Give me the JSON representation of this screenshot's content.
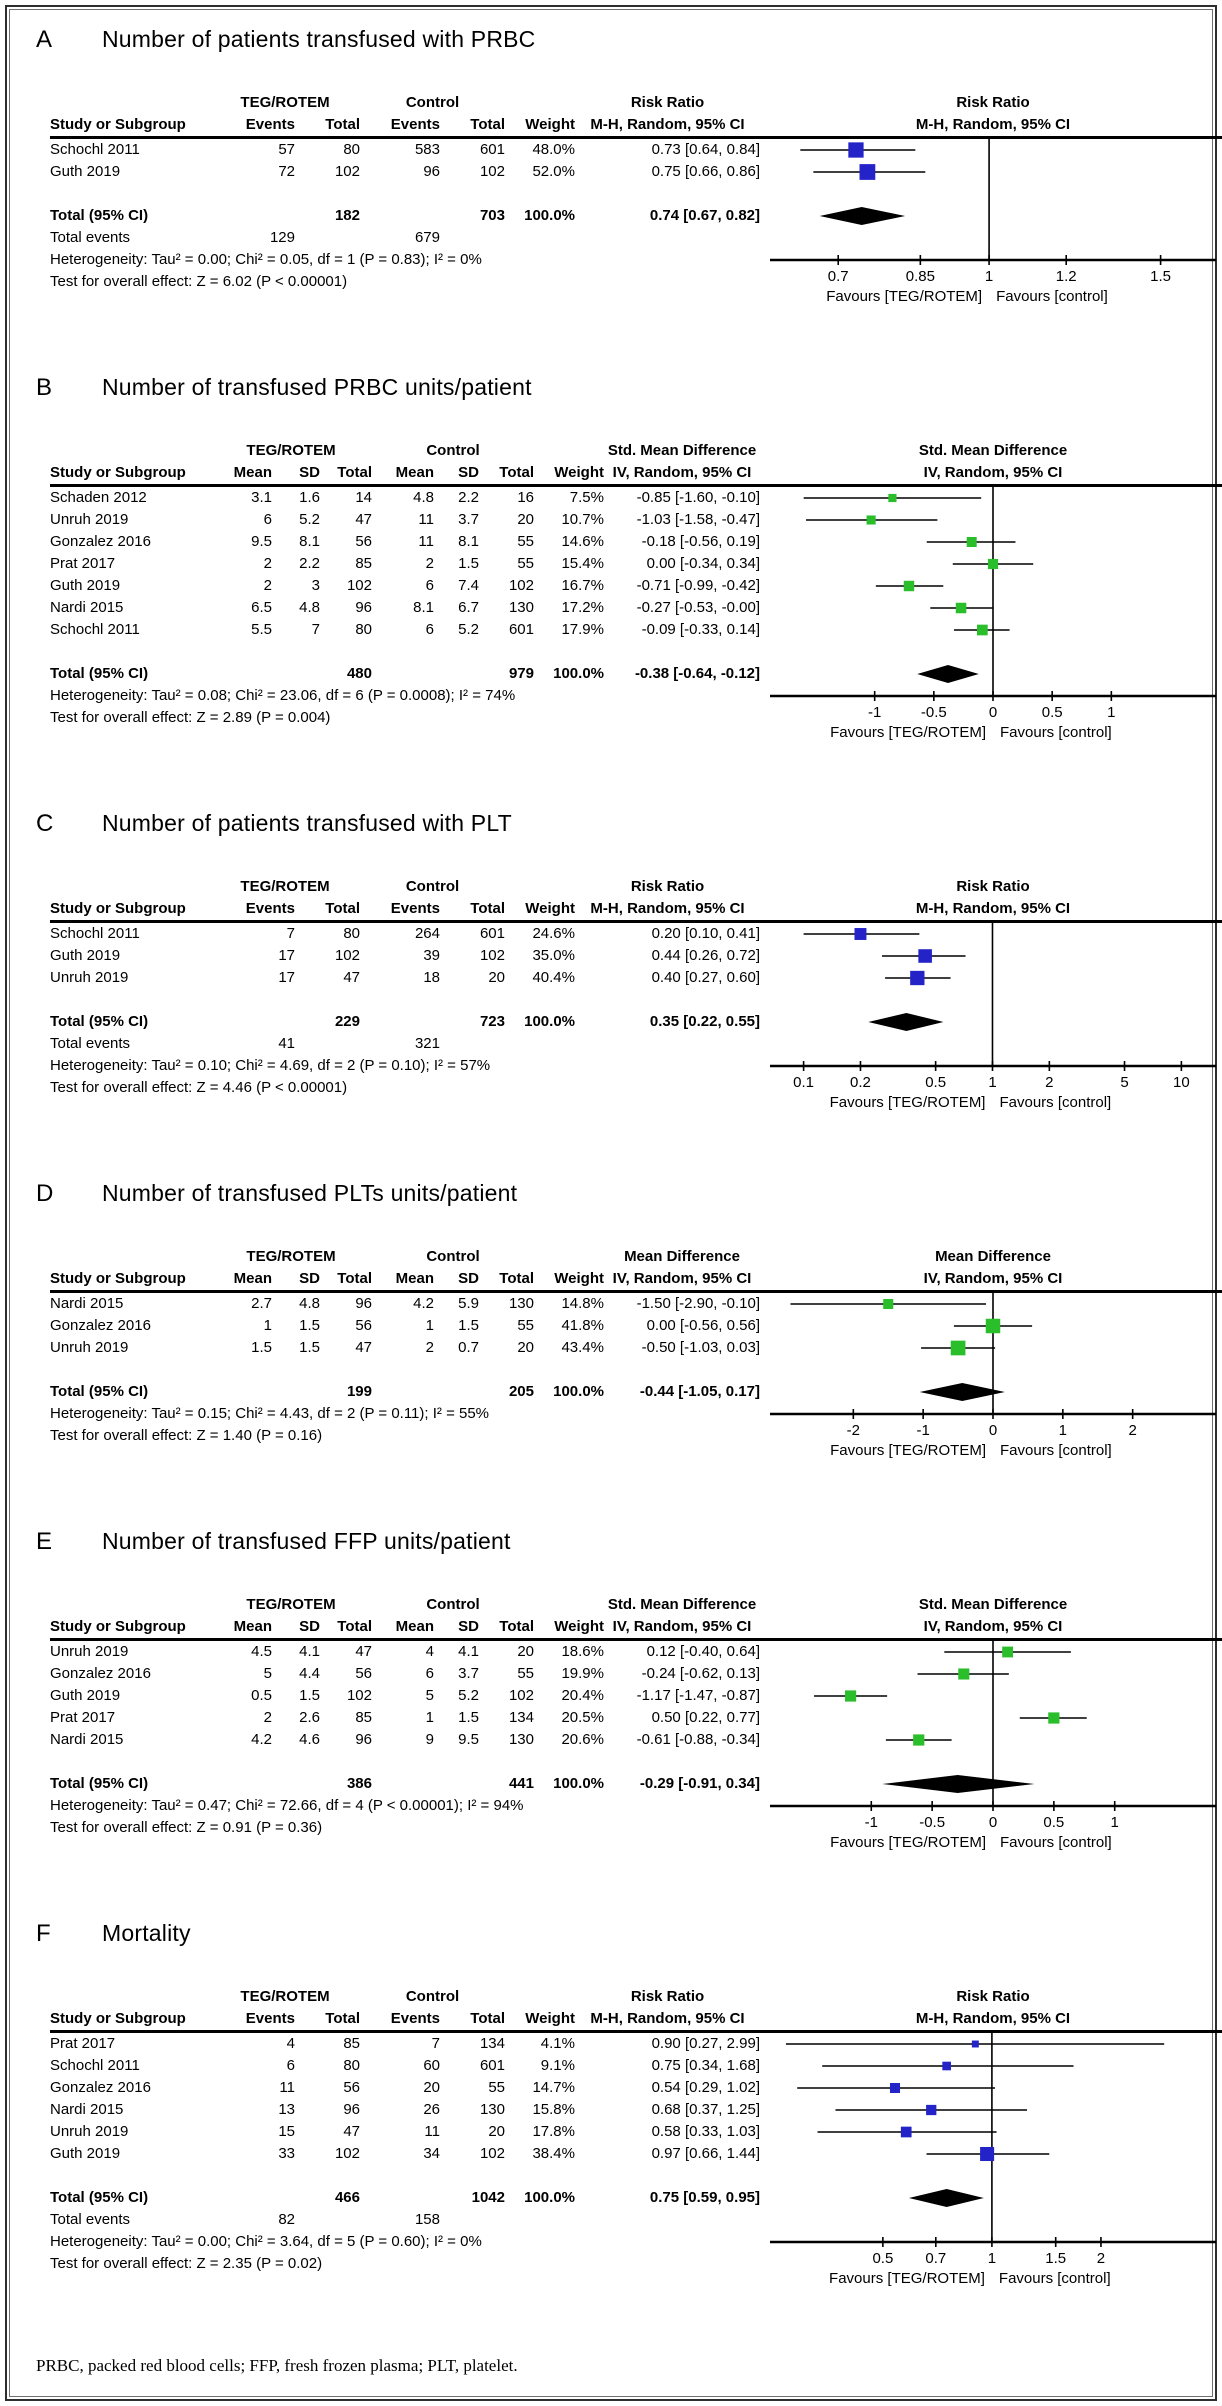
{
  "figure": {
    "footnote": "PRBC, packed red blood cells; FFP, fresh frozen plasma; PLT, platelet.",
    "favours_left": "Favours [TEG/ROTEM]",
    "favours_right": "Favours [control]",
    "marker_colors": {
      "risk_ratio": "#2323C8",
      "mean_difference": "#2BBE2B"
    },
    "diamond_color": "#000000"
  },
  "chart_data": [
    {
      "label": "A",
      "title": "Number of patients transfused with PRBC",
      "type": "forest",
      "layout": "events",
      "group1": "TEG/ROTEM",
      "group2": "Control",
      "effect_line1": "Risk Ratio",
      "effect_line2": "M-H, Random, 95% CI",
      "col_headers": [
        "Study or Subgroup",
        "Events",
        "Total",
        "Events",
        "Total",
        "Weight"
      ],
      "marker_color": "#2323C8",
      "rows": [
        {
          "study": "Schochl 2011",
          "cols": [
            "57",
            "80",
            "583",
            "601"
          ],
          "weight": "48.0%",
          "weight_value": 48.0,
          "effect": "0.73 [0.64, 0.84]",
          "est": 0.73,
          "lo": 0.64,
          "hi": 0.84
        },
        {
          "study": "Guth 2019",
          "cols": [
            "72",
            "102",
            "96",
            "102"
          ],
          "weight": "52.0%",
          "weight_value": 52.0,
          "effect": "0.75 [0.66, 0.86]",
          "est": 0.75,
          "lo": 0.66,
          "hi": 0.86
        }
      ],
      "total": {
        "label": "Total (95% CI)",
        "g1_total": "182",
        "g2_total": "703",
        "weight": "100.0%",
        "effect": "0.74 [0.67, 0.82]",
        "est": 0.74,
        "lo": 0.67,
        "hi": 0.82
      },
      "total_events": {
        "label": "Total events",
        "g1": "129",
        "g2": "679"
      },
      "heterogeneity": "Heterogeneity: Tau² = 0.00; Chi² = 0.05, df = 1 (P = 0.83); I² = 0%",
      "overall_effect": "Test for overall effect: Z = 6.02 (P < 0.00001)",
      "axis": {
        "scale": "log",
        "null_value": 1,
        "ticks": [
          0.7,
          0.85,
          1,
          1.2,
          1.5
        ],
        "tick_labels": [
          "0.7",
          "0.85",
          "1",
          "1.2",
          "1.5"
        ],
        "extent": [
          0.61,
          1.67
        ]
      }
    },
    {
      "label": "B",
      "title": "Number of transfused PRBC units/patient",
      "type": "forest",
      "layout": "mean_sd",
      "group1": "TEG/ROTEM",
      "group2": "Control",
      "effect_line1": "Std. Mean Difference",
      "effect_line2": "IV, Random, 95% CI",
      "col_headers": [
        "Study or Subgroup",
        "Mean",
        "SD",
        "Total",
        "Mean",
        "SD",
        "Total",
        "Weight"
      ],
      "marker_color": "#2BBE2B",
      "rows": [
        {
          "study": "Schaden 2012",
          "cols": [
            "3.1",
            "1.6",
            "14",
            "4.8",
            "2.2",
            "16"
          ],
          "weight": "7.5%",
          "weight_value": 7.5,
          "effect": "-0.85 [-1.60, -0.10]",
          "est": -0.85,
          "lo": -1.6,
          "hi": -0.1
        },
        {
          "study": "Unruh 2019",
          "cols": [
            "6",
            "5.2",
            "47",
            "11",
            "3.7",
            "20"
          ],
          "weight": "10.7%",
          "weight_value": 10.7,
          "effect": "-1.03 [-1.58, -0.47]",
          "est": -1.03,
          "lo": -1.58,
          "hi": -0.47
        },
        {
          "study": "Gonzalez 2016",
          "cols": [
            "9.5",
            "8.1",
            "56",
            "11",
            "8.1",
            "55"
          ],
          "weight": "14.6%",
          "weight_value": 14.6,
          "effect": "-0.18 [-0.56, 0.19]",
          "est": -0.18,
          "lo": -0.56,
          "hi": 0.19
        },
        {
          "study": "Prat 2017",
          "cols": [
            "2",
            "2.2",
            "85",
            "2",
            "1.5",
            "55"
          ],
          "weight": "15.4%",
          "weight_value": 15.4,
          "effect": "0.00 [-0.34, 0.34]",
          "est": 0.0,
          "lo": -0.34,
          "hi": 0.34
        },
        {
          "study": "Guth 2019",
          "cols": [
            "2",
            "3",
            "102",
            "6",
            "7.4",
            "102"
          ],
          "weight": "16.7%",
          "weight_value": 16.7,
          "effect": "-0.71 [-0.99, -0.42]",
          "est": -0.71,
          "lo": -0.99,
          "hi": -0.42
        },
        {
          "study": "Nardi 2015",
          "cols": [
            "6.5",
            "4.8",
            "96",
            "8.1",
            "6.7",
            "130"
          ],
          "weight": "17.2%",
          "weight_value": 17.2,
          "effect": "-0.27 [-0.53, -0.00]",
          "est": -0.27,
          "lo": -0.53,
          "hi": -0.0
        },
        {
          "study": "Schochl 2011",
          "cols": [
            "5.5",
            "7",
            "80",
            "6",
            "5.2",
            "601"
          ],
          "weight": "17.9%",
          "weight_value": 17.9,
          "effect": "-0.09 [-0.33, 0.14]",
          "est": -0.09,
          "lo": -0.33,
          "hi": 0.14
        }
      ],
      "total": {
        "label": "Total (95% CI)",
        "g1_total": "480",
        "g2_total": "979",
        "weight": "100.0%",
        "effect": "-0.38 [-0.64, -0.12]",
        "est": -0.38,
        "lo": -0.64,
        "hi": -0.12
      },
      "heterogeneity": "Heterogeneity: Tau² = 0.08; Chi² = 23.06, df = 6 (P = 0.0008); I² = 74%",
      "overall_effect": "Test for overall effect: Z = 2.89 (P = 0.004)",
      "axis": {
        "scale": "linear",
        "null_value": 0,
        "ticks": [
          -1,
          -0.5,
          0,
          0.5,
          1
        ],
        "tick_labels": [
          "-1",
          "-0.5",
          "0",
          "0.5",
          "1"
        ],
        "extent": [
          -1.8,
          1.8
        ]
      }
    },
    {
      "label": "C",
      "title": "Number of patients transfused with PLT",
      "type": "forest",
      "layout": "events",
      "group1": "TEG/ROTEM",
      "group2": "Control",
      "effect_line1": "Risk Ratio",
      "effect_line2": "M-H, Random, 95% CI",
      "col_headers": [
        "Study or Subgroup",
        "Events",
        "Total",
        "Events",
        "Total",
        "Weight"
      ],
      "marker_color": "#2323C8",
      "rows": [
        {
          "study": "Schochl 2011",
          "cols": [
            "7",
            "80",
            "264",
            "601"
          ],
          "weight": "24.6%",
          "weight_value": 24.6,
          "effect": "0.20 [0.10, 0.41]",
          "est": 0.2,
          "lo": 0.1,
          "hi": 0.41
        },
        {
          "study": "Guth 2019",
          "cols": [
            "17",
            "102",
            "39",
            "102"
          ],
          "weight": "35.0%",
          "weight_value": 35.0,
          "effect": "0.44 [0.26, 0.72]",
          "est": 0.44,
          "lo": 0.26,
          "hi": 0.72
        },
        {
          "study": "Unruh 2019",
          "cols": [
            "17",
            "47",
            "18",
            "20"
          ],
          "weight": "40.4%",
          "weight_value": 40.4,
          "effect": "0.40 [0.27, 0.60]",
          "est": 0.4,
          "lo": 0.27,
          "hi": 0.6
        }
      ],
      "total": {
        "label": "Total (95% CI)",
        "g1_total": "229",
        "g2_total": "723",
        "weight": "100.0%",
        "effect": "0.35 [0.22, 0.55]",
        "est": 0.35,
        "lo": 0.22,
        "hi": 0.55
      },
      "total_events": {
        "label": "Total events",
        "g1": "41",
        "g2": "321"
      },
      "heterogeneity": "Heterogeneity: Tau² = 0.10; Chi² = 4.69, df = 2 (P = 0.10); I² = 57%",
      "overall_effect": "Test for overall effect: Z = 4.46 (P < 0.00001)",
      "axis": {
        "scale": "log",
        "null_value": 1,
        "ticks": [
          0.1,
          0.2,
          0.5,
          1,
          2,
          5,
          10
        ],
        "tick_labels": [
          "0.1",
          "0.2",
          "0.5",
          "1",
          "2",
          "5",
          "10"
        ],
        "extent": [
          0.075,
          13.5
        ]
      }
    },
    {
      "label": "D",
      "title": "Number of transfused PLTs units/patient",
      "type": "forest",
      "layout": "mean_sd",
      "group1": "TEG/ROTEM",
      "group2": "Control",
      "effect_line1": "Mean Difference",
      "effect_line2": "IV, Random, 95% CI",
      "col_headers": [
        "Study or Subgroup",
        "Mean",
        "SD",
        "Total",
        "Mean",
        "SD",
        "Total",
        "Weight"
      ],
      "marker_color": "#2BBE2B",
      "rows": [
        {
          "study": "Nardi 2015",
          "cols": [
            "2.7",
            "4.8",
            "96",
            "4.2",
            "5.9",
            "130"
          ],
          "weight": "14.8%",
          "weight_value": 14.8,
          "effect": "-1.50 [-2.90, -0.10]",
          "est": -1.5,
          "lo": -2.9,
          "hi": -0.1
        },
        {
          "study": "Gonzalez 2016",
          "cols": [
            "1",
            "1.5",
            "56",
            "1",
            "1.5",
            "55"
          ],
          "weight": "41.8%",
          "weight_value": 41.8,
          "effect": "0.00 [-0.56, 0.56]",
          "est": 0.0,
          "lo": -0.56,
          "hi": 0.56
        },
        {
          "study": "Unruh 2019",
          "cols": [
            "1.5",
            "1.5",
            "47",
            "2",
            "0.7",
            "20"
          ],
          "weight": "43.4%",
          "weight_value": 43.4,
          "effect": "-0.50 [-1.03, 0.03]",
          "est": -0.5,
          "lo": -1.03,
          "hi": 0.03
        }
      ],
      "total": {
        "label": "Total (95% CI)",
        "g1_total": "199",
        "g2_total": "205",
        "weight": "100.0%",
        "effect": "-0.44 [-1.05, 0.17]",
        "est": -0.44,
        "lo": -1.05,
        "hi": 0.17
      },
      "heterogeneity": "Heterogeneity: Tau² = 0.15; Chi² = 4.43, df = 2 (P = 0.11); I² = 55%",
      "overall_effect": "Test for overall effect: Z = 1.40 (P = 0.16)",
      "axis": {
        "scale": "linear",
        "null_value": 0,
        "ticks": [
          -2,
          -1,
          0,
          1,
          2
        ],
        "tick_labels": [
          "-2",
          "-1",
          "0",
          "1",
          "2"
        ],
        "extent": [
          -3.05,
          3.05
        ]
      }
    },
    {
      "label": "E",
      "title": "Number of transfused FFP units/patient",
      "type": "forest",
      "layout": "mean_sd",
      "group1": "TEG/ROTEM",
      "group2": "Control",
      "effect_line1": "Std. Mean Difference",
      "effect_line2": "IV, Random, 95% CI",
      "col_headers": [
        "Study or Subgroup",
        "Mean",
        "SD",
        "Total",
        "Mean",
        "SD",
        "Total",
        "Weight"
      ],
      "marker_color": "#2BBE2B",
      "rows": [
        {
          "study": "Unruh 2019",
          "cols": [
            "4.5",
            "4.1",
            "47",
            "4",
            "4.1",
            "20"
          ],
          "weight": "18.6%",
          "weight_value": 18.6,
          "effect": "0.12 [-0.40, 0.64]",
          "est": 0.12,
          "lo": -0.4,
          "hi": 0.64
        },
        {
          "study": "Gonzalez 2016",
          "cols": [
            "5",
            "4.4",
            "56",
            "6",
            "3.7",
            "55"
          ],
          "weight": "19.9%",
          "weight_value": 19.9,
          "effect": "-0.24 [-0.62, 0.13]",
          "est": -0.24,
          "lo": -0.62,
          "hi": 0.13
        },
        {
          "study": "Guth 2019",
          "cols": [
            "0.5",
            "1.5",
            "102",
            "5",
            "5.2",
            "102"
          ],
          "weight": "20.4%",
          "weight_value": 20.4,
          "effect": "-1.17 [-1.47, -0.87]",
          "est": -1.17,
          "lo": -1.47,
          "hi": -0.87
        },
        {
          "study": "Prat 2017",
          "cols": [
            "2",
            "2.6",
            "85",
            "1",
            "1.5",
            "134"
          ],
          "weight": "20.5%",
          "weight_value": 20.5,
          "effect": "0.50 [0.22, 0.77]",
          "est": 0.5,
          "lo": 0.22,
          "hi": 0.77
        },
        {
          "study": "Nardi 2015",
          "cols": [
            "4.2",
            "4.6",
            "96",
            "9",
            "9.5",
            "130"
          ],
          "weight": "20.6%",
          "weight_value": 20.6,
          "effect": "-0.61 [-0.88, -0.34]",
          "est": -0.61,
          "lo": -0.88,
          "hi": -0.34
        }
      ],
      "total": {
        "label": "Total (95% CI)",
        "g1_total": "386",
        "g2_total": "441",
        "weight": "100.0%",
        "effect": "-0.29 [-0.91, 0.34]",
        "est": -0.29,
        "lo": -0.91,
        "hi": 0.34
      },
      "heterogeneity": "Heterogeneity: Tau² = 0.47; Chi² = 72.66, df = 4 (P < 0.00001); I² = 94%",
      "overall_effect": "Test for overall effect: Z = 0.91 (P = 0.36)",
      "axis": {
        "scale": "linear",
        "null_value": 0,
        "ticks": [
          -1,
          -0.5,
          0,
          0.5,
          1
        ],
        "tick_labels": [
          "-1",
          "-0.5",
          "0",
          "0.5",
          "1"
        ],
        "extent": [
          -1.75,
          1.75
        ]
      }
    },
    {
      "label": "F",
      "title": "Mortality",
      "type": "forest",
      "layout": "events",
      "group1": "TEG/ROTEM",
      "group2": "Control",
      "effect_line1": "Risk Ratio",
      "effect_line2": "M-H, Random, 95% CI",
      "col_headers": [
        "Study or Subgroup",
        "Events",
        "Total",
        "Events",
        "Total",
        "Weight"
      ],
      "marker_color": "#2323C8",
      "rows": [
        {
          "study": "Prat 2017",
          "cols": [
            "4",
            "85",
            "7",
            "134"
          ],
          "weight": "4.1%",
          "weight_value": 4.1,
          "effect": "0.90 [0.27, 2.99]",
          "est": 0.9,
          "lo": 0.27,
          "hi": 2.99
        },
        {
          "study": "Schochl 2011",
          "cols": [
            "6",
            "80",
            "60",
            "601"
          ],
          "weight": "9.1%",
          "weight_value": 9.1,
          "effect": "0.75 [0.34, 1.68]",
          "est": 0.75,
          "lo": 0.34,
          "hi": 1.68
        },
        {
          "study": "Gonzalez 2016",
          "cols": [
            "11",
            "56",
            "20",
            "55"
          ],
          "weight": "14.7%",
          "weight_value": 14.7,
          "effect": "0.54 [0.29, 1.02]",
          "est": 0.54,
          "lo": 0.29,
          "hi": 1.02
        },
        {
          "study": "Nardi 2015",
          "cols": [
            "13",
            "96",
            "26",
            "130"
          ],
          "weight": "15.8%",
          "weight_value": 15.8,
          "effect": "0.68 [0.37, 1.25]",
          "est": 0.68,
          "lo": 0.37,
          "hi": 1.25
        },
        {
          "study": "Unruh 2019",
          "cols": [
            "15",
            "47",
            "11",
            "20"
          ],
          "weight": "17.8%",
          "weight_value": 17.8,
          "effect": "0.58 [0.33, 1.03]",
          "est": 0.58,
          "lo": 0.33,
          "hi": 1.03
        },
        {
          "study": "Guth 2019",
          "cols": [
            "33",
            "102",
            "34",
            "102"
          ],
          "weight": "38.4%",
          "weight_value": 38.4,
          "effect": "0.97 [0.66, 1.44]",
          "est": 0.97,
          "lo": 0.66,
          "hi": 1.44
        }
      ],
      "total": {
        "label": "Total (95% CI)",
        "g1_total": "466",
        "g2_total": "1042",
        "weight": "100.0%",
        "effect": "0.75 [0.59, 0.95]",
        "est": 0.75,
        "lo": 0.59,
        "hi": 0.95
      },
      "total_events": {
        "label": "Total events",
        "g1": "82",
        "g2": "158"
      },
      "heterogeneity": "Heterogeneity: Tau² = 0.00; Chi² = 3.64, df = 5 (P = 0.60); I² = 0%",
      "overall_effect": "Test for overall effect: Z = 2.35 (P = 0.02)",
      "axis": {
        "scale": "log",
        "null_value": 1,
        "ticks": [
          0.5,
          0.7,
          1,
          1.5,
          2
        ],
        "tick_labels": [
          "0.5",
          "0.7",
          "1",
          "1.5",
          "2"
        ],
        "extent": [
          0.26,
          3.9
        ]
      }
    }
  ]
}
